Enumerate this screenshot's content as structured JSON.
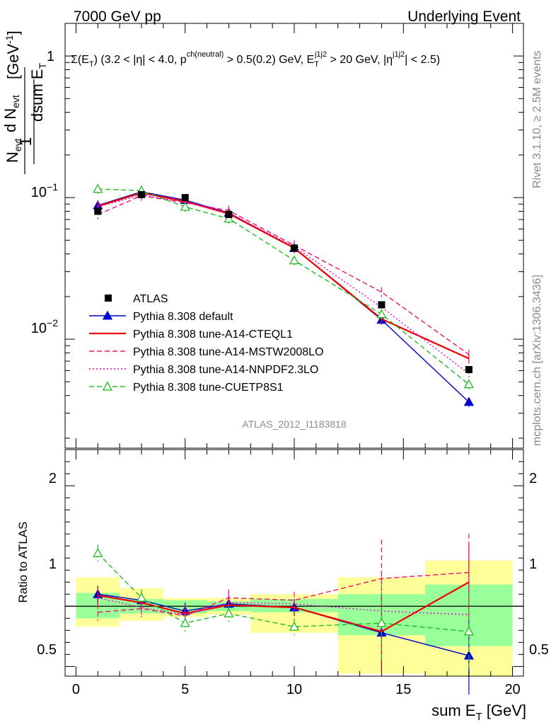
{
  "header": {
    "left": "7000 GeV pp",
    "right": "Underlying Event"
  },
  "side_text": {
    "top": "Rivet 3.1.10, ≥ 2.5M events",
    "bottom": "mcplots.cern.ch [arXiv:1306.3436]"
  },
  "watermark": "ATLAS_2012_I1183818",
  "chart_data": [
    {
      "type": "line",
      "panel": "main",
      "title": "Σ(E_T) (3.2 < |η| < 4.0, p^ch(neutral) > 0.5(0.2) GeV, E_T^j1j2 > 20 GeV, |η^j1j2| < 2.5)",
      "ylabel": "1/N_evt dN_evt/dsum E_T [GeV^-1]",
      "yscale": "log",
      "ylim": [
        0.0017,
        1.7
      ],
      "xlim": [
        -0.5,
        20.5
      ],
      "ytick_labels": [
        "1",
        "10^-1",
        "10^-2"
      ],
      "bins": [
        [
          0,
          2
        ],
        [
          2,
          4
        ],
        [
          4,
          6
        ],
        [
          6,
          8
        ],
        [
          8,
          12
        ],
        [
          12,
          16
        ],
        [
          16,
          20
        ]
      ],
      "x": [
        1,
        3,
        5,
        7,
        10,
        14,
        18
      ],
      "data": {
        "name": "ATLAS",
        "values": [
          0.08,
          0.105,
          0.1,
          0.076,
          0.044,
          0.0175,
          0.0061
        ]
      },
      "series": [
        {
          "name": "Pythia 8.308 default",
          "color": "#0000cc",
          "style": "solid",
          "marker": "triangle-filled",
          "values": [
            0.088,
            0.11,
            0.096,
            0.078,
            0.044,
            0.0137,
            0.0036
          ]
        },
        {
          "name": "Pythia 8.308 tune-A14-CTEQL1",
          "color": "#ee0000",
          "style": "solid",
          "marker": "none",
          "values": [
            0.087,
            0.108,
            0.094,
            0.077,
            0.044,
            0.0139,
            0.0073
          ]
        },
        {
          "name": "Pythia 8.308 tune-A14-MSTW2008LO",
          "color": "#ee1166",
          "style": "dashed",
          "marker": "none",
          "values": [
            0.076,
            0.103,
            0.092,
            0.081,
            0.046,
            0.0215,
            0.0078
          ]
        },
        {
          "name": "Pythia 8.308 tune-A14-NNPDF2.3LO",
          "color": "#dd00cc",
          "style": "dotted",
          "marker": "none",
          "values": [
            0.086,
            0.104,
            0.093,
            0.078,
            0.045,
            0.0168,
            0.0057
          ]
        },
        {
          "name": "Pythia 8.308 tune-CUETP8S1",
          "color": "#22bb22",
          "style": "dashed",
          "marker": "triangle-open",
          "values": [
            0.115,
            0.112,
            0.086,
            0.071,
            0.036,
            0.015,
            0.0048
          ]
        }
      ],
      "legend": "lower-left"
    },
    {
      "type": "line",
      "panel": "ratio",
      "ylabel": "Ratio to ATLAS",
      "xlabel": "sum E_T [GeV]",
      "ylim": [
        0.42,
        2.3
      ],
      "xlim": [
        -0.5,
        20.5
      ],
      "ytick_labels": [
        "2",
        "1",
        "0.5"
      ],
      "xtick_labels": [
        "0",
        "5",
        "10",
        "15",
        "20"
      ],
      "band_stat": [
        [
          0.9,
          1.11
        ],
        [
          0.94,
          1.06
        ],
        [
          0.94,
          1.05
        ],
        [
          0.96,
          1.04
        ],
        [
          0.95,
          1.06
        ],
        [
          0.76,
          1.1
        ],
        [
          0.67,
          1.18
        ]
      ],
      "band_total": [
        [
          0.83,
          1.24
        ],
        [
          0.88,
          1.15
        ],
        [
          0.91,
          1.07
        ],
        [
          0.93,
          1.07
        ],
        [
          0.78,
          1.1
        ],
        [
          0.44,
          1.24
        ],
        [
          0.42,
          1.38
        ]
      ],
      "series": [
        {
          "name": "Pythia 8.308 default",
          "values": [
            1.1,
            1.05,
            0.96,
            1.02,
            0.99,
            0.78,
            0.59
          ]
        },
        {
          "name": "Pythia 8.308 tune-A14-CTEQL1",
          "values": [
            1.09,
            1.03,
            0.94,
            1.01,
            0.99,
            0.79,
            1.2
          ]
        },
        {
          "name": "Pythia 8.308 tune-A14-MSTW2008LO",
          "values": [
            0.95,
            0.98,
            0.92,
            1.07,
            1.05,
            1.23,
            1.28
          ]
        },
        {
          "name": "Pythia 8.308 tune-A14-NNPDF2.3LO",
          "values": [
            1.07,
            0.99,
            0.93,
            1.03,
            1.02,
            0.96,
            0.93
          ]
        },
        {
          "name": "Pythia 8.308 tune-CUETP8S1",
          "values": [
            1.44,
            1.07,
            0.86,
            0.94,
            0.83,
            0.86,
            0.79
          ]
        }
      ]
    }
  ]
}
